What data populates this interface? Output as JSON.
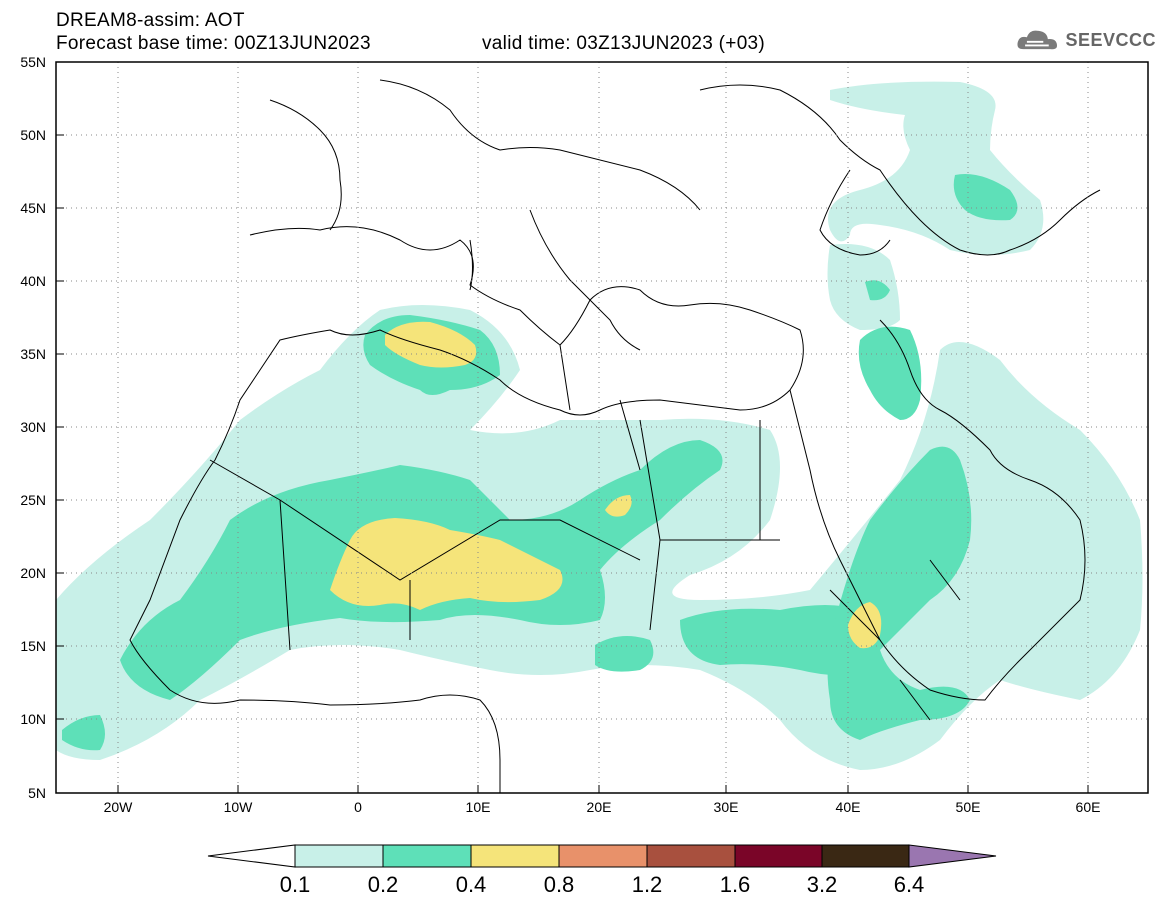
{
  "header": {
    "title_line1": "DREAM8-assim: AOT",
    "title_line2": "Forecast base time: 00Z13JUN2023",
    "valid_time": "valid time: 03Z13JUN2023 (+03)",
    "logo_text": "SEEVCCC"
  },
  "map": {
    "lat_labels": [
      "55N",
      "50N",
      "45N",
      "40N",
      "35N",
      "30N",
      "25N",
      "20N",
      "15N",
      "10N",
      "5N"
    ],
    "lon_labels": [
      "20W",
      "10W",
      "0",
      "10E",
      "20E",
      "30E",
      "40E",
      "50E",
      "60E"
    ]
  },
  "colorbar": {
    "labels": [
      "0.1",
      "0.2",
      "0.4",
      "0.8",
      "1.2",
      "1.6",
      "3.2",
      "6.4"
    ],
    "colors": [
      "#ffffff",
      "#c8f0e8",
      "#5ee0b8",
      "#f5e47a",
      "#e8916a",
      "#a8503e",
      "#7a0528",
      "#3a2814",
      "#9a76b0"
    ]
  }
}
